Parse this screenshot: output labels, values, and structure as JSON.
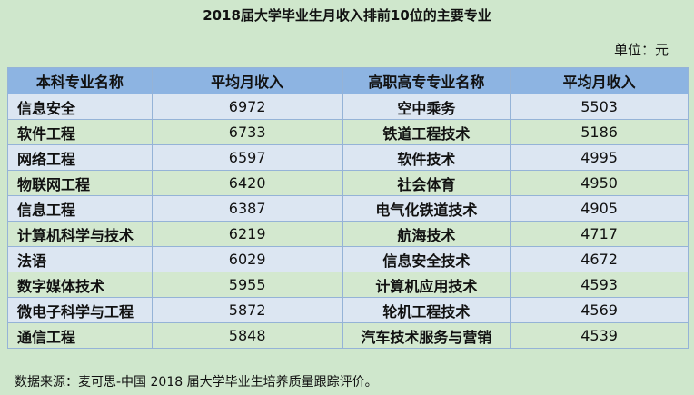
{
  "title": "2018届大学毕业生月收入排前10位的主要专业",
  "unit": "单位：元",
  "headers": [
    "本科专业名称",
    "平均月收入",
    "高职高专专业名称",
    "平均月收入"
  ],
  "rows": [
    [
      "信息安全",
      "6972",
      "空中乘务",
      "5503"
    ],
    [
      "软件工程",
      "6733",
      "铁道工程技术",
      "5186"
    ],
    [
      "网络工程",
      "6597",
      "软件技术",
      "4995"
    ],
    [
      "物联网工程",
      "6420",
      "社会体育",
      "4950"
    ],
    [
      "信息工程",
      "6387",
      "电气化铁道技术",
      "4905"
    ],
    [
      "计算机科学与技术",
      "6219",
      "航海技术",
      "4717"
    ],
    [
      "法语",
      "6029",
      "信息安全技术",
      "4672"
    ],
    [
      "数字媒体技术",
      "5955",
      "计算机应用技术",
      "4593"
    ],
    [
      "微电子科学与工程",
      "5872",
      "轮机工程技术",
      "4569"
    ],
    [
      "通信工程",
      "5848",
      "汽车技术服务与营销",
      "4539"
    ]
  ],
  "source": "数据来源：麦可思-中国 2018 届大学毕业生培养质量跟踪评价。",
  "colors": {
    "background": "#cfe7cc",
    "header": "#8db4e2",
    "row_odd": "#dce6f2",
    "row_even": "#d3e8cf"
  }
}
